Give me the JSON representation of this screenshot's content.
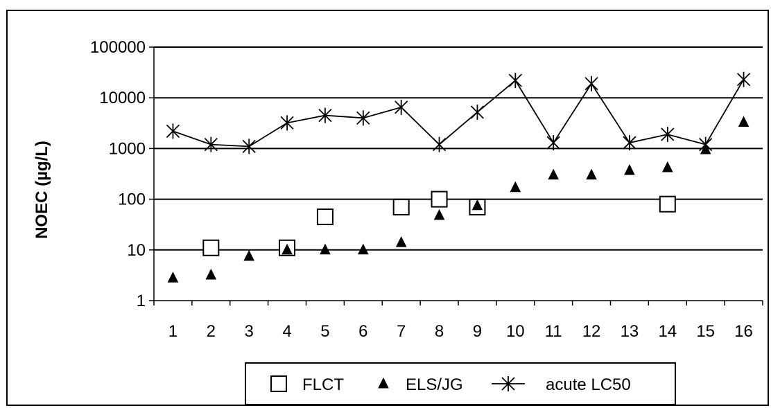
{
  "chart_data": {
    "type": "scatter",
    "title": "",
    "xlabel": "",
    "ylabel": "NOEC (µg/L)",
    "yscale": "log",
    "ylim": [
      1,
      100000
    ],
    "yticks": [
      "1",
      "10",
      "100",
      "1000",
      "10000",
      "100000"
    ],
    "categories": [
      "1",
      "2",
      "3",
      "4",
      "5",
      "6",
      "7",
      "8",
      "9",
      "10",
      "11",
      "12",
      "13",
      "14",
      "15",
      "16"
    ],
    "grid": "horizontal",
    "legend_position": "bottom",
    "series": [
      {
        "name": "FLCT",
        "marker": "open-square",
        "color": "#000000",
        "points": [
          {
            "x": 2,
            "y": 11
          },
          {
            "x": 4,
            "y": 11
          },
          {
            "x": 5,
            "y": 45
          },
          {
            "x": 7,
            "y": 70
          },
          {
            "x": 8,
            "y": 100
          },
          {
            "x": 9,
            "y": 70
          },
          {
            "x": 14,
            "y": 80
          }
        ]
      },
      {
        "name": "ELS/JG",
        "marker": "filled-triangle",
        "color": "#000000",
        "points": [
          {
            "x": 1,
            "y": 2.8
          },
          {
            "x": 2,
            "y": 3.2
          },
          {
            "x": 3,
            "y": 7.5
          },
          {
            "x": 4,
            "y": 10
          },
          {
            "x": 5,
            "y": 10
          },
          {
            "x": 6,
            "y": 10
          },
          {
            "x": 7,
            "y": 14
          },
          {
            "x": 8,
            "y": 48
          },
          {
            "x": 9,
            "y": 75
          },
          {
            "x": 10,
            "y": 170
          },
          {
            "x": 11,
            "y": 300
          },
          {
            "x": 12,
            "y": 300
          },
          {
            "x": 13,
            "y": 370
          },
          {
            "x": 14,
            "y": 420
          },
          {
            "x": 15,
            "y": 950
          },
          {
            "x": 16,
            "y": 3300
          }
        ]
      },
      {
        "name": "acute LC50",
        "marker": "star-line",
        "color": "#000000",
        "points": [
          {
            "x": 1,
            "y": 2200
          },
          {
            "x": 2,
            "y": 1200
          },
          {
            "x": 3,
            "y": 1100
          },
          {
            "x": 4,
            "y": 3200
          },
          {
            "x": 5,
            "y": 4500
          },
          {
            "x": 6,
            "y": 4000
          },
          {
            "x": 7,
            "y": 6500
          },
          {
            "x": 8,
            "y": 1200
          },
          {
            "x": 9,
            "y": 5200
          },
          {
            "x": 10,
            "y": 22000
          },
          {
            "x": 11,
            "y": 1300
          },
          {
            "x": 12,
            "y": 19000
          },
          {
            "x": 13,
            "y": 1300
          },
          {
            "x": 14,
            "y": 1900
          },
          {
            "x": 15,
            "y": 1200
          },
          {
            "x": 16,
            "y": 23000
          }
        ]
      }
    ]
  }
}
